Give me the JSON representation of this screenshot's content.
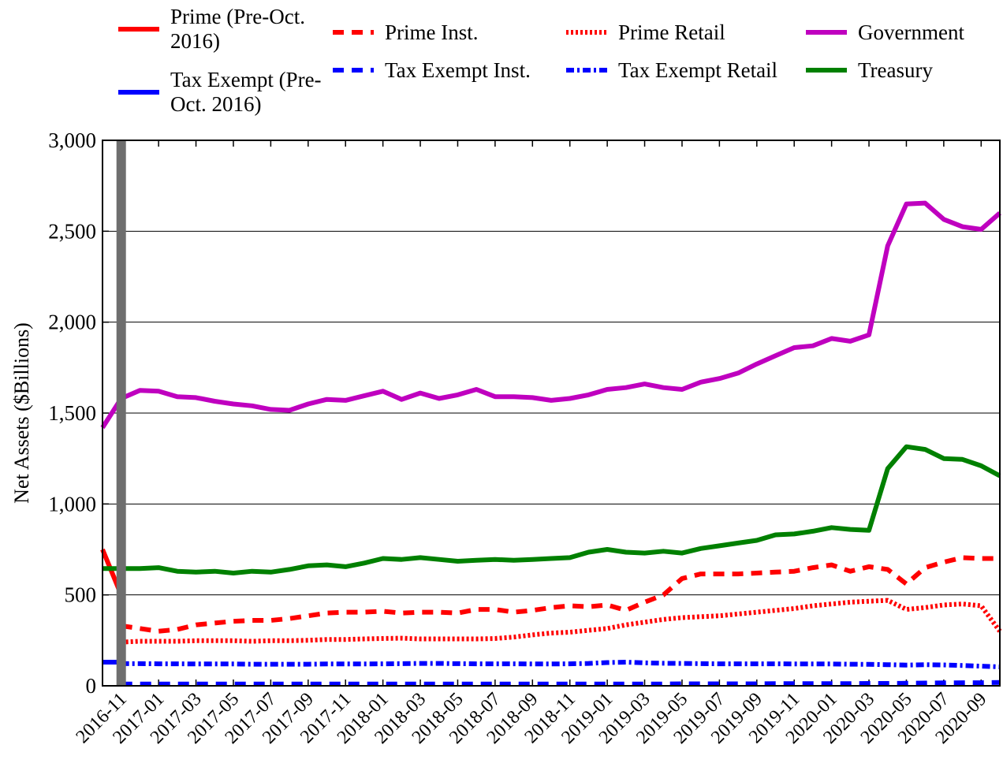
{
  "chart_data": {
    "type": "line",
    "y_label": "Net Assets ($Billions)",
    "categories": [
      null,
      "2016-11",
      null,
      "2017-01",
      null,
      "2017-03",
      null,
      "2017-05",
      null,
      "2017-07",
      null,
      "2017-09",
      null,
      "2017-11",
      null,
      "2018-01",
      null,
      "2018-03",
      null,
      "2018-05",
      null,
      "2018-07",
      null,
      "2018-09",
      null,
      "2018-11",
      null,
      "2019-01",
      null,
      "2019-03",
      null,
      "2019-05",
      null,
      "2019-07",
      null,
      "2019-09",
      null,
      "2019-11",
      null,
      "2020-01",
      null,
      "2020-03",
      null,
      "2020-05",
      null,
      "2020-07",
      null,
      "2020-09",
      null
    ],
    "ylim": [
      0,
      3000
    ],
    "yticks": [
      0,
      500,
      {
        "value": 1000,
        "label": "1,000"
      },
      {
        "value": 1500,
        "label": "1,500"
      },
      {
        "value": 2000,
        "label": "2,000"
      },
      {
        "value": 2500,
        "label": "2,500"
      },
      {
        "value": 3000,
        "label": "3,000"
      }
    ],
    "grid": true,
    "series": [
      {
        "name": "Prime (Pre-Oct. 2016)",
        "color": "#ff0000",
        "style": "solid",
        "values": [
          750,
          500,
          null,
          null,
          null,
          null,
          null,
          null,
          null,
          null,
          null,
          null,
          null,
          null,
          null,
          null,
          null,
          null,
          null,
          null,
          null,
          null,
          null,
          null,
          null,
          null,
          null,
          null,
          null,
          null,
          null,
          null,
          null,
          null,
          null,
          null,
          null,
          null,
          null,
          null,
          null,
          null,
          null,
          null,
          null,
          null,
          null,
          null,
          null
        ]
      },
      {
        "name": "Tax Exempt (Pre-Oct. 2016)",
        "color": "#0000ff",
        "style": "solid",
        "values": [
          130,
          130,
          null,
          null,
          null,
          null,
          null,
          null,
          null,
          null,
          null,
          null,
          null,
          null,
          null,
          null,
          null,
          null,
          null,
          null,
          null,
          null,
          null,
          null,
          null,
          null,
          null,
          null,
          null,
          null,
          null,
          null,
          null,
          null,
          null,
          null,
          null,
          null,
          null,
          null,
          null,
          null,
          null,
          null,
          null,
          null,
          null,
          null,
          null
        ]
      },
      {
        "name": "Prime Inst.",
        "color": "#ff0000",
        "style": "dashed",
        "values": [
          null,
          330,
          315,
          300,
          310,
          335,
          345,
          355,
          360,
          360,
          370,
          385,
          400,
          405,
          405,
          410,
          400,
          405,
          405,
          400,
          420,
          420,
          405,
          415,
          430,
          440,
          435,
          445,
          415,
          460,
          500,
          590,
          615,
          615,
          615,
          620,
          625,
          630,
          650,
          665,
          630,
          655,
          640,
          560,
          650,
          680,
          705,
          700,
          700
        ]
      },
      {
        "name": "Tax Exempt Inst.",
        "color": "#0000ff",
        "style": "dashed",
        "values": [
          null,
          10,
          10,
          10,
          10,
          10,
          10,
          10,
          10,
          10,
          10,
          10,
          10,
          10,
          10,
          10,
          10,
          10,
          10,
          10,
          10,
          10,
          10,
          10,
          10,
          10,
          10,
          10,
          10,
          10,
          10,
          11,
          11,
          11,
          11,
          11,
          12,
          12,
          12,
          12,
          12,
          13,
          13,
          14,
          15,
          16,
          17,
          17,
          18
        ]
      },
      {
        "name": "Prime Retail",
        "color": "#ff0000",
        "style": "dotted",
        "values": [
          null,
          240,
          245,
          245,
          245,
          248,
          248,
          248,
          245,
          248,
          248,
          250,
          255,
          255,
          258,
          260,
          262,
          258,
          258,
          258,
          258,
          260,
          268,
          280,
          290,
          295,
          305,
          315,
          335,
          350,
          365,
          375,
          380,
          385,
          395,
          405,
          415,
          425,
          440,
          450,
          460,
          465,
          470,
          420,
          430,
          445,
          450,
          440,
          300
        ]
      },
      {
        "name": "Tax Exempt Retail",
        "color": "#0000ff",
        "style": "dashdot",
        "values": [
          null,
          122,
          122,
          121,
          121,
          120,
          120,
          120,
          119,
          119,
          119,
          119,
          120,
          120,
          120,
          121,
          122,
          123,
          123,
          122,
          121,
          121,
          121,
          120,
          120,
          121,
          123,
          128,
          130,
          126,
          124,
          123,
          122,
          121,
          121,
          121,
          121,
          120,
          120,
          120,
          119,
          118,
          116,
          114,
          116,
          115,
          112,
          108,
          104
        ]
      },
      {
        "name": "Government",
        "color": "#bf00bf",
        "style": "solid",
        "values": [
          1420,
          1580,
          1625,
          1620,
          1590,
          1585,
          1565,
          1550,
          1540,
          1520,
          1515,
          1550,
          1575,
          1570,
          1595,
          1620,
          1575,
          1610,
          1580,
          1600,
          1630,
          1590,
          1590,
          1585,
          1570,
          1580,
          1600,
          1630,
          1640,
          1660,
          1640,
          1630,
          1670,
          1690,
          1720,
          1770,
          1815,
          1860,
          1870,
          1910,
          1895,
          1930,
          2420,
          2650,
          2655,
          2565,
          2525,
          2510,
          2600
        ]
      },
      {
        "name": "Treasury",
        "color": "#008000",
        "style": "solid",
        "values": [
          645,
          645,
          645,
          650,
          630,
          625,
          630,
          620,
          630,
          625,
          640,
          660,
          665,
          655,
          675,
          700,
          695,
          705,
          695,
          685,
          690,
          695,
          690,
          695,
          700,
          705,
          735,
          750,
          735,
          730,
          740,
          730,
          755,
          770,
          785,
          800,
          830,
          835,
          850,
          870,
          860,
          855,
          1195,
          1315,
          1300,
          1250,
          1245,
          1210,
          1155
        ]
      }
    ]
  }
}
